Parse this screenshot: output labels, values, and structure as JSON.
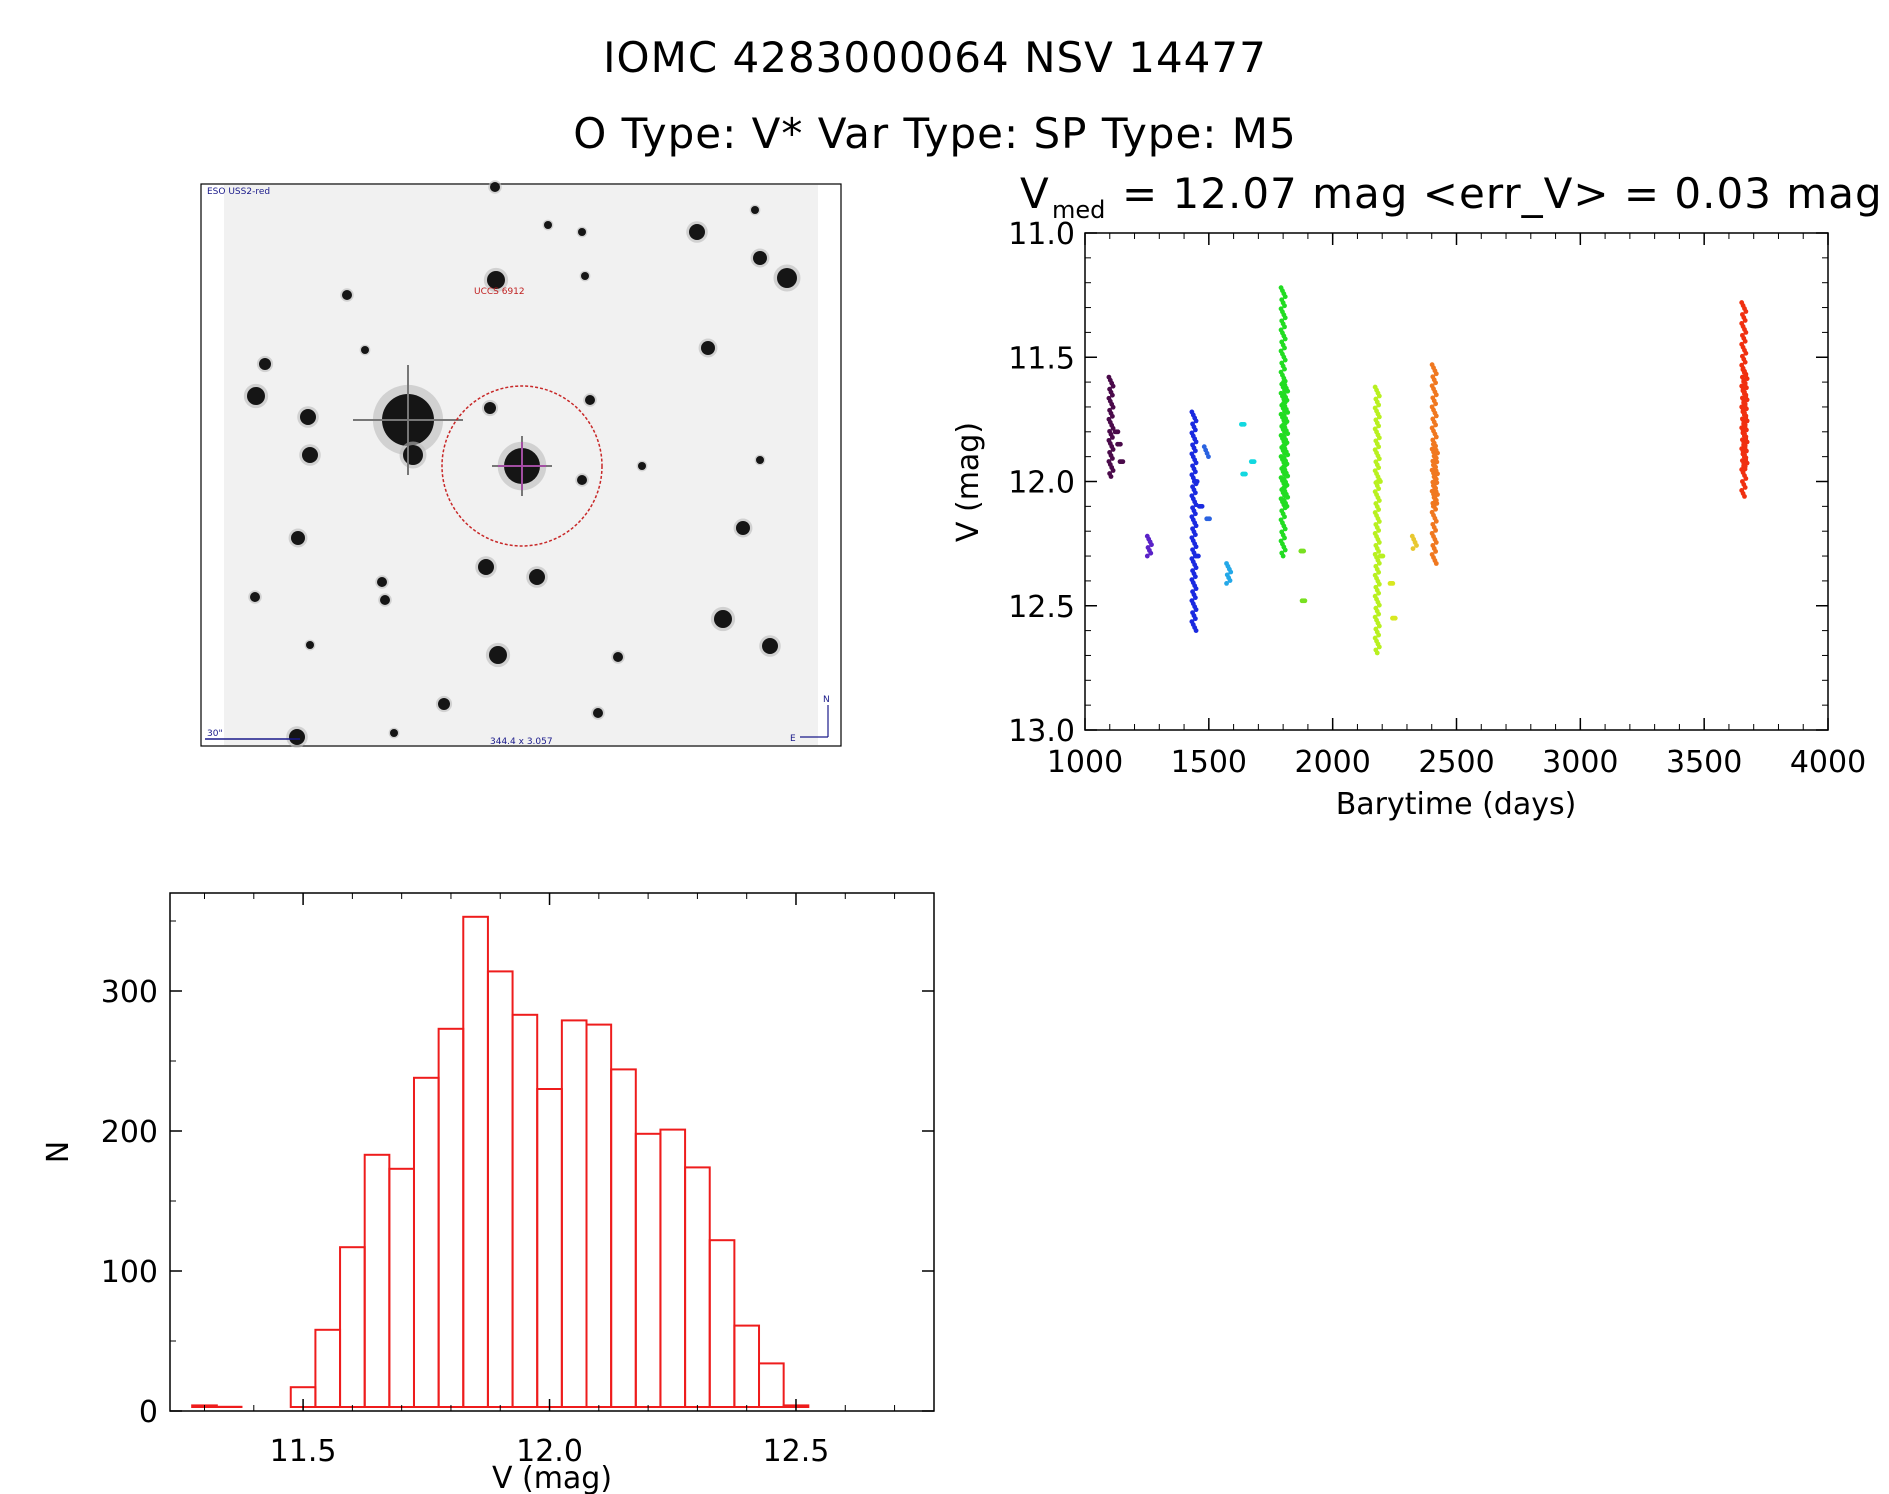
{
  "header": {
    "title": "IOMC 4283000064    NSV 14477",
    "subtitle": "O Type: V*  Var Type:    SP Type: M5"
  },
  "image_panel": {
    "survey_label": "ESO USS2-red",
    "target_label": "UCCS 6912",
    "scale_label": "30\"",
    "coord_label": "344.4 x 3.057",
    "north_label": "N",
    "east_label": "E"
  },
  "lightcurve": {
    "title_prefix": "V",
    "title_sub": "med",
    "title_rest": "= 12.07 mag <err_V> = 0.03 mag",
    "xlabel": "Barytime (days)",
    "ylabel": "V (mag)"
  },
  "chart_data": [
    {
      "type": "scatter",
      "name_hint": "lightcurve",
      "xlabel": "Barytime (days)",
      "ylabel": "V (mag)",
      "xlim": [
        1000,
        4000
      ],
      "ylim": [
        13.0,
        11.0
      ],
      "y_inverted": true,
      "x_ticks": [
        "1000",
        "1500",
        "2000",
        "2500",
        "3000",
        "3500",
        "4000"
      ],
      "y_ticks": [
        "11.0",
        "11.5",
        "12.0",
        "12.5",
        "13.0"
      ],
      "groups": [
        {
          "color": "#4a0a4a",
          "points": [
            [
              1105,
              11.58
            ],
            [
              1105,
              11.98
            ],
            [
              1110,
              11.7
            ],
            [
              1110,
              11.9
            ],
            [
              1130,
              11.8
            ],
            [
              1140,
              11.85
            ],
            [
              1150,
              11.92
            ]
          ]
        },
        {
          "color": "#5a22c8",
          "points": [
            [
              1260,
              12.22
            ],
            [
              1260,
              12.3
            ]
          ]
        },
        {
          "color": "#1a2ae0",
          "points": [
            [
              1440,
              11.72
            ],
            [
              1440,
              12.6
            ],
            [
              1450,
              12.0
            ],
            [
              1455,
              12.3
            ],
            [
              1470,
              12.1
            ]
          ]
        },
        {
          "color": "#2a62e0",
          "points": [
            [
              1490,
              11.86
            ],
            [
              1500,
              12.15
            ],
            [
              1485,
              11.9
            ]
          ]
        },
        {
          "color": "#23a8e8",
          "points": [
            [
              1580,
              12.33
            ],
            [
              1580,
              12.41
            ]
          ]
        },
        {
          "color": "#12d8e0",
          "points": [
            [
              1640,
              11.77
            ],
            [
              1645,
              11.97
            ],
            [
              1680,
              11.92
            ]
          ]
        },
        {
          "color": "#22dc22",
          "points": [
            [
              1800,
              11.22
            ],
            [
              1800,
              12.3
            ],
            [
              1810,
              11.6
            ],
            [
              1810,
              12.1
            ]
          ]
        },
        {
          "color": "#78e020",
          "points": [
            [
              1880,
              12.28
            ],
            [
              1885,
              12.48
            ]
          ]
        },
        {
          "color": "#b8f020",
          "points": [
            [
              2180,
              11.62
            ],
            [
              2180,
              12.69
            ],
            [
              2190,
              12.0
            ],
            [
              2200,
              12.3
            ]
          ]
        },
        {
          "color": "#d8e820",
          "points": [
            [
              2240,
              12.41
            ],
            [
              2250,
              12.55
            ]
          ]
        },
        {
          "color": "#e8c830",
          "points": [
            [
              2330,
              12.22
            ],
            [
              2330,
              12.27
            ]
          ]
        },
        {
          "color": "#f07820",
          "points": [
            [
              2410,
              11.53
            ],
            [
              2410,
              12.33
            ],
            [
              2415,
              11.85
            ],
            [
              2415,
              12.1
            ]
          ]
        },
        {
          "color": "#f03010",
          "points": [
            [
              3660,
              11.28
            ],
            [
              3660,
              12.06
            ],
            [
              3665,
              11.55
            ],
            [
              3665,
              11.95
            ]
          ]
        }
      ]
    },
    {
      "type": "bar",
      "name_hint": "histogram",
      "xlabel": "V (mag)",
      "ylabel": "N",
      "xlim": [
        11.23,
        12.78
      ],
      "ylim": [
        0,
        370
      ],
      "x_ticks": [
        "11.5",
        "12.0",
        "12.5"
      ],
      "y_ticks": [
        "0",
        "100",
        "200",
        "300"
      ],
      "bin_width": 0.05,
      "bin_start": 11.25,
      "values": [
        1,
        4,
        3,
        1,
        2,
        17,
        58,
        117,
        183,
        173,
        238,
        273,
        353,
        314,
        283,
        230,
        279,
        276,
        244,
        198,
        201,
        174,
        122,
        61,
        34,
        4
      ],
      "bar_color": "#ee1c1c"
    }
  ]
}
